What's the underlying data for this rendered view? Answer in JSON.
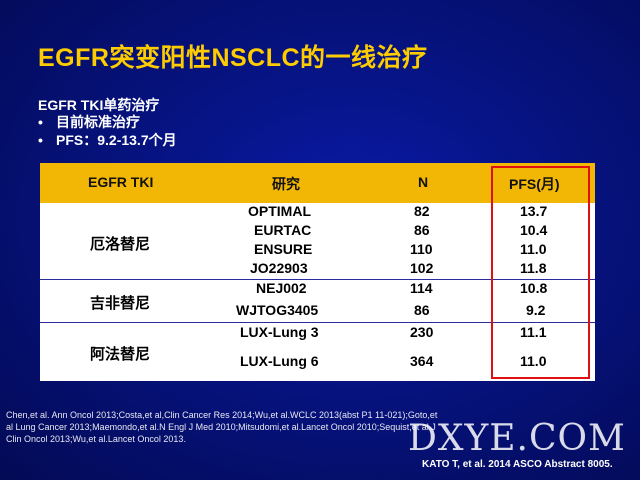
{
  "slide": {
    "title": "EGFR突变阳性NSCLC的一线治疗",
    "subtitle": "EGFR TKI单药治疗",
    "bullets": [
      "目前标准治疗",
      "PFS：9.2-13.7个月"
    ],
    "bullet_marker": "•"
  },
  "table": {
    "headers": [
      "EGFR TKI",
      "研究",
      "N",
      "PFS(月)"
    ],
    "groups": [
      {
        "drug": "厄洛替尼",
        "rows": [
          {
            "study": "OPTIMAL",
            "n": "82",
            "pfs": "13.7"
          },
          {
            "study": "EURTAC",
            "n": "86",
            "pfs": "10.4"
          },
          {
            "study": "ENSURE",
            "n": "110",
            "pfs": "11.0"
          },
          {
            "study": "JO22903",
            "n": "102",
            "pfs": "11.8"
          }
        ]
      },
      {
        "drug": "吉非替尼",
        "rows": [
          {
            "study": "NEJ002",
            "n": "114",
            "pfs": "10.8"
          },
          {
            "study": "WJTOG3405",
            "n": "86",
            "pfs": "9.2"
          }
        ]
      },
      {
        "drug": "阿法替尼",
        "rows": [
          {
            "study": "LUX-Lung 3",
            "n": "230",
            "pfs": "11.1"
          },
          {
            "study": "LUX-Lung 6",
            "n": "364",
            "pfs": "11.0"
          }
        ]
      }
    ],
    "highlight_color": "#e01010",
    "header_color": "#f2b705"
  },
  "references": "Chen,et al. Ann Oncol 2013;Costa,et al,Clin Cancer Res 2014;Wu,et al.WCLC 2013(abst P1 11-021);Goto,et al Lung Cancer 2013;Maemondo,et al.N Engl J Med 2010;Mitsudomi,et al.Lancet Oncol 2010;Sequist,et al.J Clin Oncol 2013;Wu,et al.Lancet Oncol 2013.",
  "watermark": "DXYE.COM",
  "source": "KATO T, et al. 2014 ASCO Abstract 8005."
}
